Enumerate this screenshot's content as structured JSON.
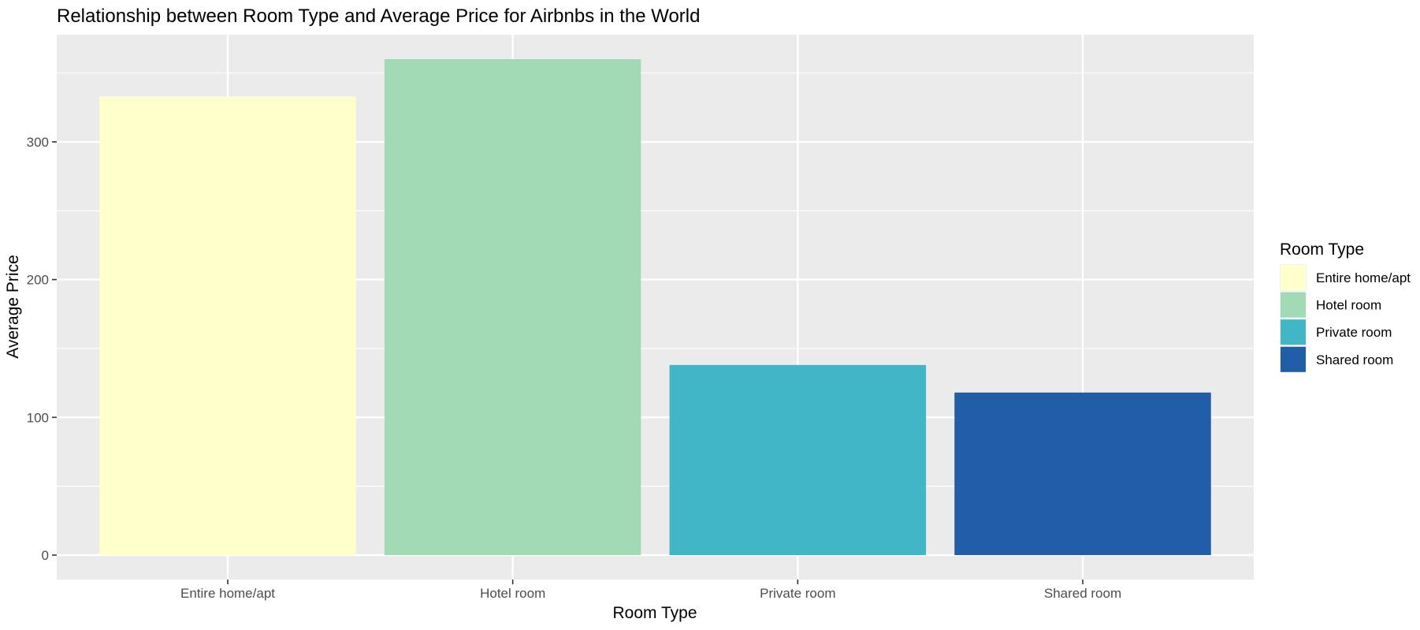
{
  "chart_data": {
    "type": "bar",
    "title": "Relationship between Room Type and Average Price for Airbnbs in the World",
    "xlabel": "Room Type",
    "ylabel": "Average Price",
    "categories": [
      "Entire home/apt",
      "Hotel room",
      "Private room",
      "Shared room"
    ],
    "values": [
      333,
      360,
      138,
      118
    ],
    "ylim": [
      0,
      360
    ],
    "yticks": [
      0,
      100,
      200,
      300
    ],
    "colors": [
      "#FFFFCC",
      "#A1DAB4",
      "#41B6C4",
      "#225EA8"
    ],
    "grid": true,
    "legend": {
      "title": "Room Type",
      "position": "right",
      "entries": [
        "Entire home/apt",
        "Hotel room",
        "Private room",
        "Shared room"
      ]
    }
  }
}
